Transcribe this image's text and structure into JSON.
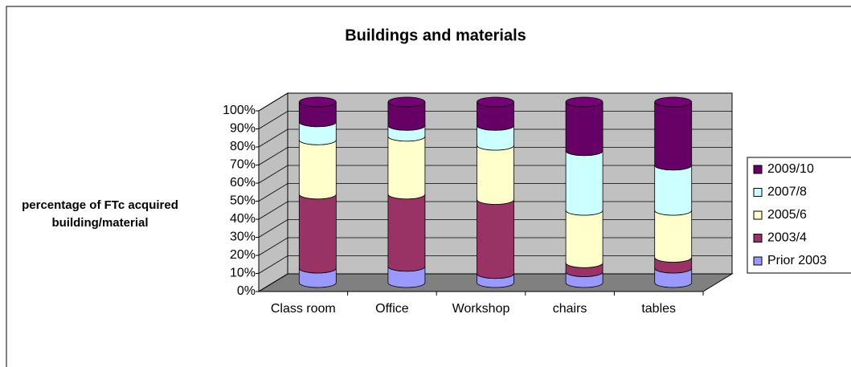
{
  "chart_data": {
    "type": "bar",
    "stacked": true,
    "title": "Buildings and materials",
    "y_label": "percentage of FTc acquired building/material",
    "categories": [
      "Class room",
      "Office",
      "Workshop",
      "chairs",
      "tables"
    ],
    "series": [
      {
        "name": "Prior 2003",
        "color": "#9999ff",
        "values": [
          8,
          9,
          5,
          6,
          8
        ]
      },
      {
        "name": "2003/4",
        "color": "#993366",
        "values": [
          41,
          40,
          41,
          5,
          6
        ]
      },
      {
        "name": "2005/6",
        "color": "#ffffcc",
        "values": [
          30,
          32,
          30,
          29,
          26
        ]
      },
      {
        "name": "2007/8",
        "color": "#ccffff",
        "values": [
          10,
          6,
          11,
          33,
          25
        ]
      },
      {
        "name": "2009/10",
        "color": "#660066",
        "values": [
          11,
          13,
          13,
          27,
          35
        ]
      }
    ],
    "ylim": [
      0,
      100
    ],
    "yticks": [
      {
        "value": 0,
        "label": "0%"
      },
      {
        "value": 10,
        "label": "10%"
      },
      {
        "value": 20,
        "label": "20%"
      },
      {
        "value": 30,
        "label": "30%"
      },
      {
        "value": 40,
        "label": "40%"
      },
      {
        "value": 50,
        "label": "50%"
      },
      {
        "value": 60,
        "label": "60%"
      },
      {
        "value": 70,
        "label": "70%"
      },
      {
        "value": 80,
        "label": "80%"
      },
      {
        "value": 90,
        "label": "90%"
      },
      {
        "value": 100,
        "label": "100%"
      }
    ],
    "grid": true,
    "legend": "right"
  }
}
